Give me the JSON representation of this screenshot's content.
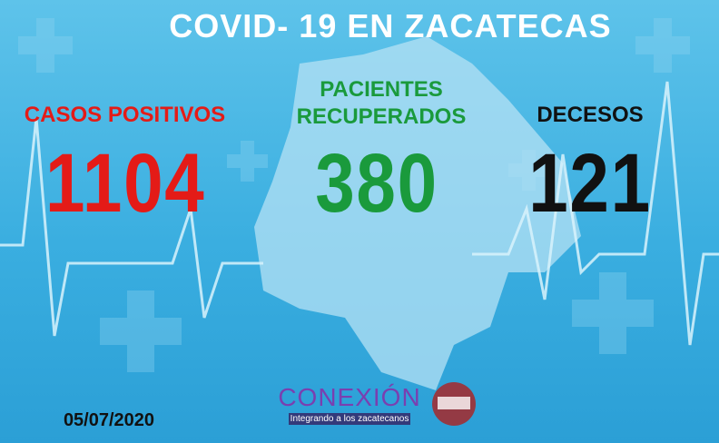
{
  "header": {
    "title": "COVID- 19 EN ZACATECAS"
  },
  "stats": [
    {
      "label": "CASOS POSITIVOS",
      "value": "1104",
      "color": "#e41b17"
    },
    {
      "label": "PACIENTES RECUPERADOS",
      "value": "380",
      "color": "#1a9a3c"
    },
    {
      "label": "DECESOS",
      "value": "121",
      "color": "#111111"
    }
  ],
  "date": "05/07/2020",
  "logo": {
    "name": "CONEXIÓN",
    "tagline": "Integrando a los zacatecanos"
  }
}
